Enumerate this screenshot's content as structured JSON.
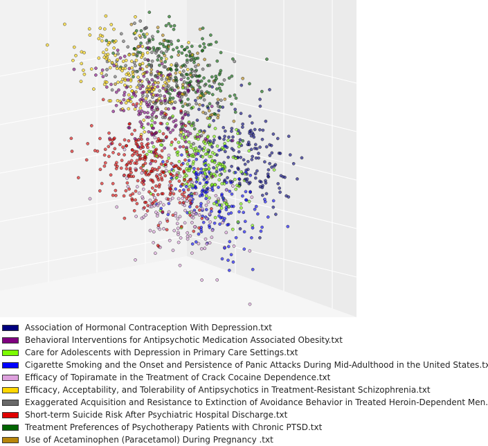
{
  "chart_data": {
    "type": "scatter",
    "projection": "3d",
    "grid": true,
    "legend_position": "bottom",
    "title": "",
    "xlabel": "",
    "ylabel": "",
    "zlabel": "",
    "series": [
      {
        "name": "Association of Hormonal Contraception With Depression.txt",
        "color": "#00007f",
        "count": 170,
        "center": [
          0.62,
          0.1,
          0.3
        ]
      },
      {
        "name": "Behavioral Interventions for Antipsychotic Medication Associated Obesity.txt",
        "color": "#800080",
        "count": 170,
        "center": [
          -0.3,
          0.05,
          0.55
        ]
      },
      {
        "name": "Care for Adolescents with Depression in Primary Care Settings.txt",
        "color": "#7cfc00",
        "count": 200,
        "center": [
          0.1,
          0.0,
          0.1
        ]
      },
      {
        "name": "Cigarette Smoking and the Onset and Persistence of Panic Attacks During Mid-Adulthood in the United States.txt",
        "color": "#0000ff",
        "count": 160,
        "center": [
          0.1,
          -0.25,
          -0.15
        ]
      },
      {
        "name": "Efficacy of Topiramate in the Treatment of Crack Cocaine Dependence.txt",
        "color": "#dda0dd",
        "count": 130,
        "center": [
          -0.35,
          -0.45,
          -0.25
        ]
      },
      {
        "name": "Efficacy, Acceptability, and Tolerability of Antipsychotics in Treatment-Resistant Schizophrenia.txt",
        "color": "#ffd700",
        "count": 150,
        "center": [
          -0.4,
          0.2,
          0.75
        ]
      },
      {
        "name": "Exaggerated Acquisition and Resistance to Extinction of Avoidance Behavior in Treated Heroin-Dependent Men.txt",
        "color": "#696969",
        "count": 140,
        "center": [
          0.0,
          0.35,
          0.7
        ]
      },
      {
        "name": "Short-term Suicide Risk After Psychiatric Hospital Discharge.txt",
        "color": "#e00000",
        "count": 260,
        "center": [
          -0.55,
          -0.3,
          0.05
        ]
      },
      {
        "name": "Treatment Preferences of Psychotherapy Patients with Chronic PTSD.txt",
        "color": "#006400",
        "count": 190,
        "center": [
          0.3,
          0.55,
          0.8
        ]
      },
      {
        "name": "Use of Acetaminophen (Paracetamol) During Pregnancy .txt",
        "color": "#b8860b",
        "count": 60,
        "center": [
          0.25,
          0.45,
          0.75
        ]
      }
    ]
  }
}
